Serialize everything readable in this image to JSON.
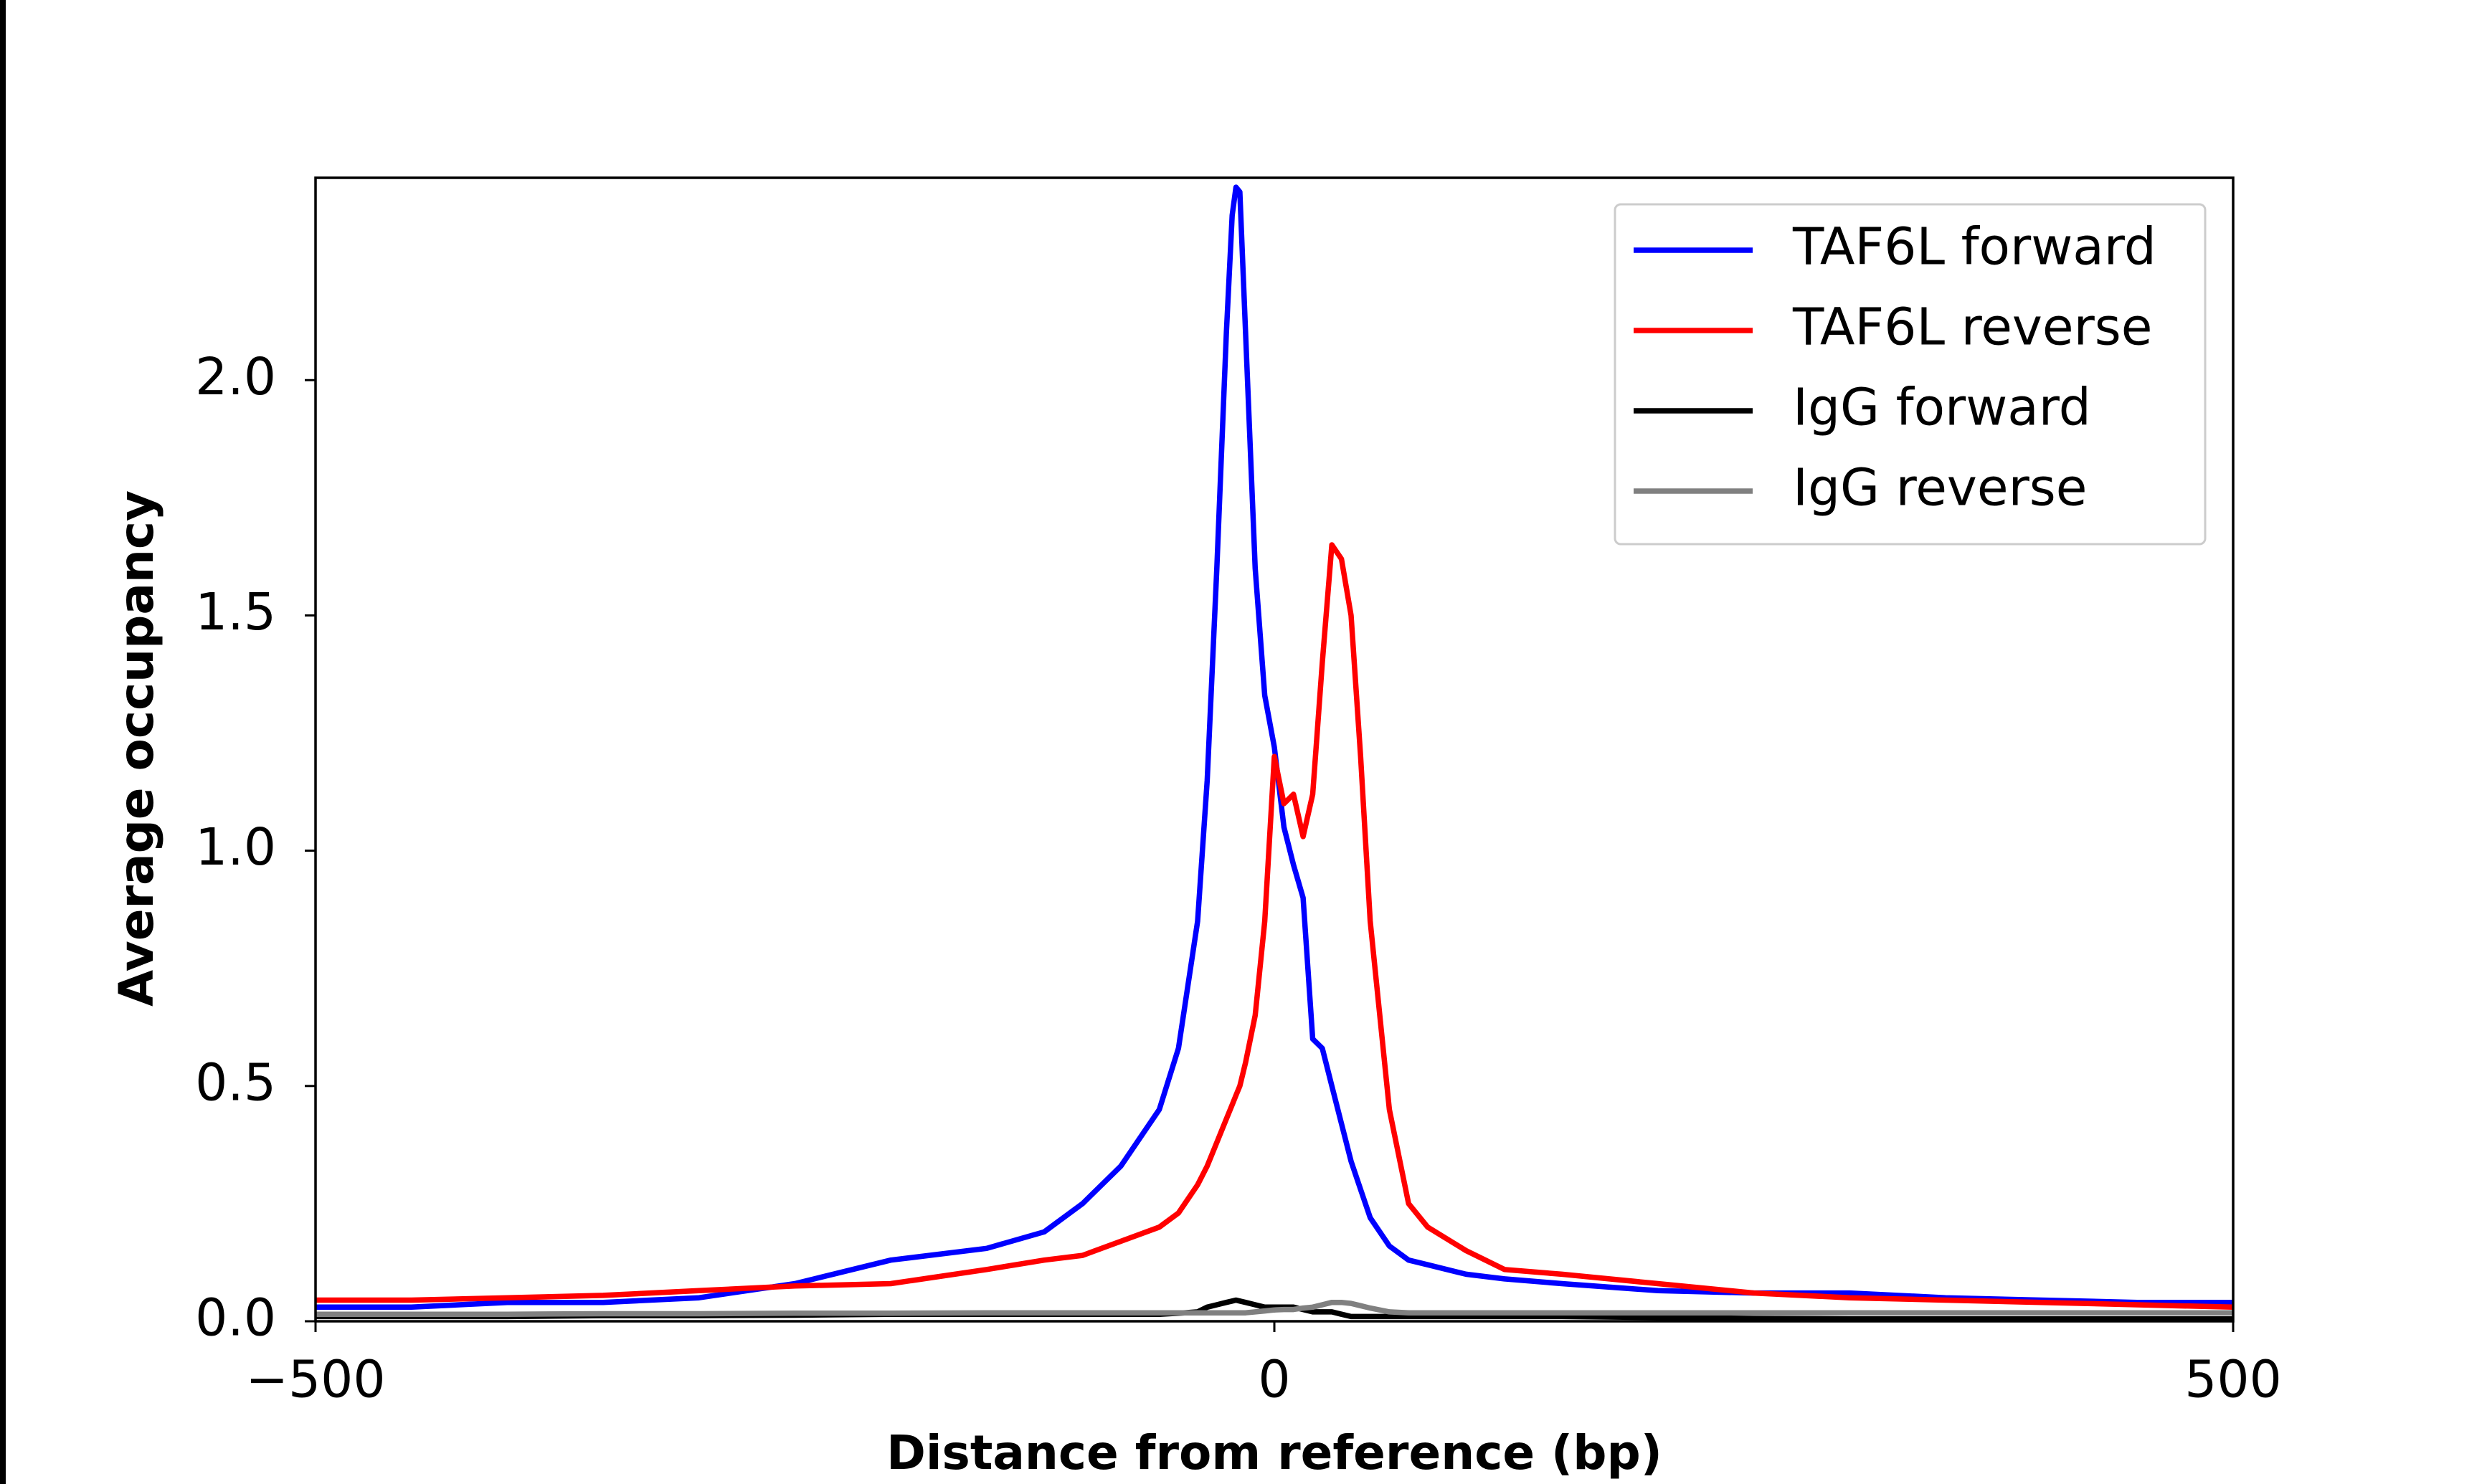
{
  "chart_data": {
    "type": "line",
    "xlabel": "Distance from reference (bp)",
    "ylabel": "Average occupancy",
    "x": [
      -500,
      -450,
      -400,
      -350,
      -300,
      -250,
      -200,
      -150,
      -120,
      -100,
      -80,
      -60,
      -50,
      -40,
      -35,
      -30,
      -25,
      -22,
      -20,
      -18,
      -15,
      -10,
      -5,
      0,
      5,
      10,
      15,
      20,
      25,
      30,
      35,
      40,
      45,
      50,
      60,
      70,
      80,
      100,
      120,
      150,
      200,
      250,
      300,
      350,
      400,
      450,
      500
    ],
    "series": [
      {
        "name": "TAF6L forward",
        "color": "#0000ff",
        "values": [
          0.03,
          0.03,
          0.04,
          0.04,
          0.05,
          0.08,
          0.13,
          0.155,
          0.19,
          0.25,
          0.33,
          0.45,
          0.58,
          0.85,
          1.15,
          1.6,
          2.1,
          2.35,
          2.41,
          2.4,
          2.1,
          1.6,
          1.33,
          1.22,
          1.05,
          0.97,
          0.9,
          0.6,
          0.58,
          0.5,
          0.42,
          0.34,
          0.28,
          0.22,
          0.16,
          0.13,
          0.12,
          0.1,
          0.09,
          0.08,
          0.065,
          0.06,
          0.06,
          0.05,
          0.045,
          0.04,
          0.04
        ]
      },
      {
        "name": "TAF6L reverse",
        "color": "#ff0000",
        "values": [
          0.045,
          0.045,
          0.05,
          0.055,
          0.065,
          0.075,
          0.08,
          0.11,
          0.13,
          0.14,
          0.17,
          0.2,
          0.23,
          0.29,
          0.33,
          0.38,
          0.43,
          0.46,
          0.48,
          0.5,
          0.55,
          0.65,
          0.85,
          1.2,
          1.1,
          1.12,
          1.03,
          1.12,
          1.4,
          1.65,
          1.62,
          1.5,
          1.2,
          0.85,
          0.45,
          0.25,
          0.2,
          0.15,
          0.11,
          0.1,
          0.08,
          0.06,
          0.05,
          0.045,
          0.04,
          0.035,
          0.03
        ]
      },
      {
        "name": "IgG forward",
        "color": "#000000",
        "values": [
          0.01,
          0.01,
          0.01,
          0.012,
          0.012,
          0.013,
          0.015,
          0.015,
          0.015,
          0.015,
          0.015,
          0.015,
          0.017,
          0.02,
          0.03,
          0.035,
          0.04,
          0.043,
          0.045,
          0.043,
          0.04,
          0.035,
          0.03,
          0.03,
          0.03,
          0.03,
          0.025,
          0.02,
          0.02,
          0.02,
          0.015,
          0.01,
          0.01,
          0.01,
          0.01,
          0.01,
          0.01,
          0.01,
          0.01,
          0.01,
          0.008,
          0.006,
          0.005,
          0.005,
          0.005,
          0.005,
          0.005
        ]
      },
      {
        "name": "IgG reverse",
        "color": "#808080",
        "values": [
          0.015,
          0.015,
          0.015,
          0.016,
          0.016,
          0.017,
          0.017,
          0.018,
          0.018,
          0.018,
          0.018,
          0.018,
          0.018,
          0.018,
          0.018,
          0.018,
          0.018,
          0.018,
          0.018,
          0.018,
          0.018,
          0.02,
          0.022,
          0.024,
          0.025,
          0.025,
          0.028,
          0.03,
          0.035,
          0.04,
          0.04,
          0.038,
          0.033,
          0.028,
          0.02,
          0.018,
          0.018,
          0.018,
          0.018,
          0.018,
          0.018,
          0.018,
          0.018,
          0.018,
          0.018,
          0.018,
          0.018
        ]
      }
    ],
    "xlim": [
      -500,
      500
    ],
    "xticks": [
      {
        "value": -500,
        "label": "−500"
      },
      0,
      500
    ],
    "ylim": [
      0,
      2.43
    ],
    "yticks": [
      {
        "value": 0,
        "label": "0.0"
      },
      0.5,
      {
        "value": 1,
        "label": "1.0"
      },
      1.5,
      {
        "value": 2,
        "label": "2.0"
      }
    ],
    "legend": "upper right"
  }
}
